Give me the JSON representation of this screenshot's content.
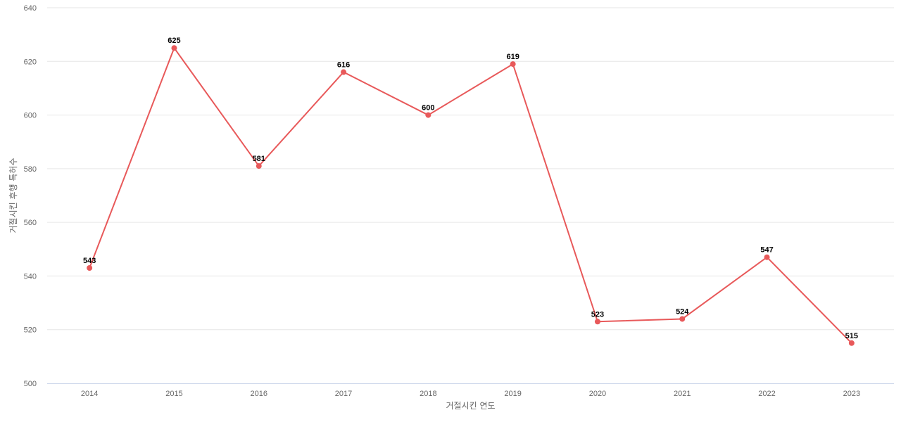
{
  "chart_data": {
    "type": "line",
    "categories": [
      "2014",
      "2015",
      "2016",
      "2017",
      "2018",
      "2019",
      "2020",
      "2021",
      "2022",
      "2023"
    ],
    "series": [
      {
        "values": [
          543,
          625,
          581,
          616,
          600,
          619,
          523,
          524,
          547,
          515
        ],
        "color": "#e8595a"
      }
    ],
    "xlabel": "거절시킨 연도",
    "ylabel": "거절시킨 후행 특허수",
    "ylim": [
      500,
      640
    ],
    "yticks": [
      500,
      520,
      540,
      560,
      580,
      600,
      620,
      640
    ],
    "grid": true,
    "data_labels": true
  }
}
